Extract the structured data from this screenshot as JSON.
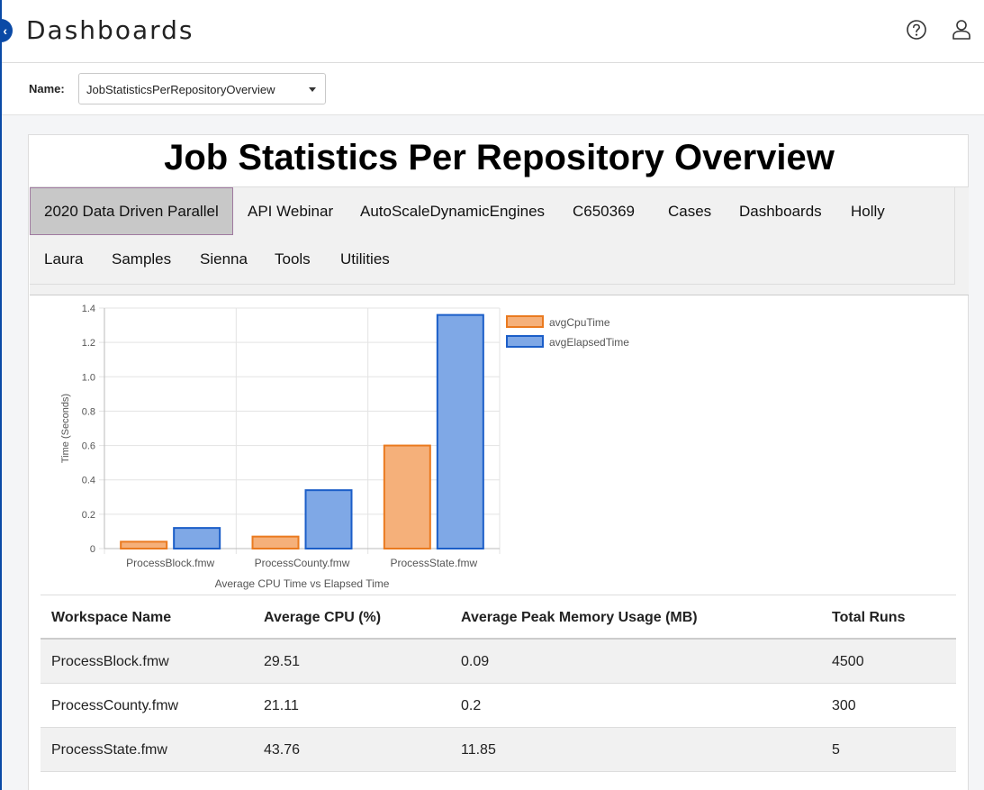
{
  "header": {
    "title": "Dashboards",
    "help_icon": "help-circle-icon",
    "user_icon": "user-icon"
  },
  "selector": {
    "label": "Name:",
    "value": "JobStatisticsPerRepositoryOverview"
  },
  "report": {
    "title": "Job Statistics Per Repository Overview",
    "tabs": [
      {
        "label": "2020 Data Driven Parallel",
        "active": true
      },
      {
        "label": "API Webinar"
      },
      {
        "label": "AutoScaleDynamicEngines"
      },
      {
        "label": "C650369"
      },
      {
        "label": "Cases"
      },
      {
        "label": "Dashboards"
      },
      {
        "label": "Holly"
      },
      {
        "label": "Laura"
      },
      {
        "label": "Samples"
      },
      {
        "label": "Sienna"
      },
      {
        "label": "Tools"
      },
      {
        "label": "Utilities"
      }
    ]
  },
  "chart_data": {
    "type": "bar",
    "categories": [
      "ProcessBlock.fmw",
      "ProcessCounty.fmw",
      "ProcessState.fmw"
    ],
    "series": [
      {
        "name": "avgCpuTime",
        "values": [
          0.04,
          0.07,
          0.6
        ],
        "color": "#f5b07a",
        "border": "#ea7a1f"
      },
      {
        "name": "avgElapsedTime",
        "values": [
          0.12,
          0.34,
          1.36
        ],
        "color": "#7fa8e6",
        "border": "#1b5ec8"
      }
    ],
    "ylabel": "Time (Seconds)",
    "xlabel": "Average CPU Time vs Elapsed Time",
    "ylim": [
      0,
      1.4
    ],
    "yticks": [
      "0",
      "0.2",
      "0.4",
      "0.6",
      "0.8",
      "1.0",
      "1.2",
      "1.4"
    ],
    "legend": "top-right",
    "grid": true
  },
  "table": {
    "headers": [
      "Workspace Name",
      "Average CPU (%)",
      "Average Peak Memory Usage (MB)",
      "Total Runs"
    ],
    "rows": [
      [
        "ProcessBlock.fmw",
        "29.51",
        "0.09",
        "4500"
      ],
      [
        "ProcessCounty.fmw",
        "21.11",
        "0.2",
        "300"
      ],
      [
        "ProcessState.fmw",
        "43.76",
        "11.85",
        "5"
      ]
    ]
  }
}
